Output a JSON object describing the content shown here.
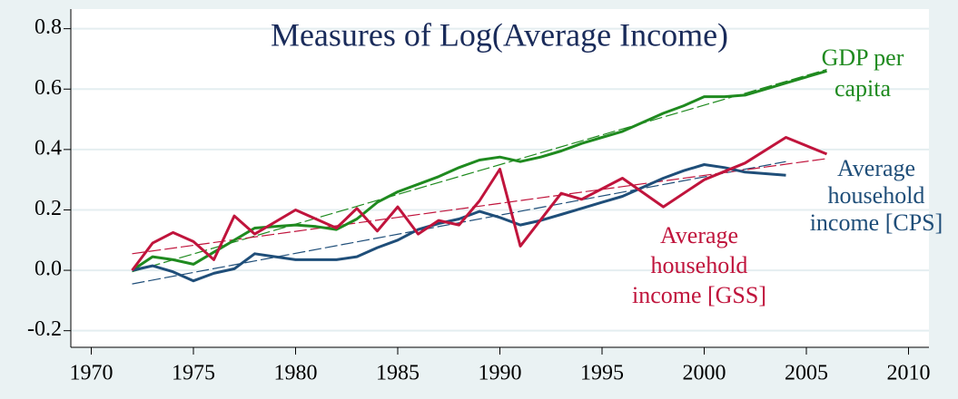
{
  "chart_data": {
    "type": "line",
    "title": "Measures of Log(Average Income)",
    "xlim": [
      1969,
      2011
    ],
    "xticks": [
      1970,
      1975,
      1980,
      1985,
      1990,
      1995,
      2000,
      2005,
      2010
    ],
    "ylim": [
      -0.255,
      0.865
    ],
    "yticks": [
      0.8,
      0.6,
      0.4,
      {
        "value": 0,
        "label": "0.0"
      },
      0.2,
      -0.2
    ],
    "grid": true,
    "series": [
      {
        "label": [
          "GDP per",
          "capita"
        ],
        "color": "#1f8a1f",
        "x": [
          1972,
          1973,
          1974,
          1975,
          1976,
          1977,
          1978,
          1979,
          1980,
          1981,
          1982,
          1983,
          1984,
          1985,
          1986,
          1987,
          1988,
          1989,
          1990,
          1991,
          1992,
          1993,
          1994,
          1995,
          1996,
          1997,
          1998,
          1999,
          2000,
          2001,
          2002,
          2003,
          2004,
          2005,
          2006
        ],
        "values": [
          0,
          0.045,
          0.035,
          0.02,
          0.06,
          0.1,
          0.14,
          0.145,
          0.15,
          0.145,
          0.135,
          0.17,
          0.225,
          0.26,
          0.285,
          0.31,
          0.34,
          0.365,
          0.375,
          0.36,
          0.375,
          0.395,
          0.42,
          0.44,
          0.46,
          0.49,
          0.52,
          0.545,
          0.575,
          0.575,
          0.58,
          0.6,
          0.62,
          0.64,
          0.66
        ]
      },
      {
        "label": [
          "Average",
          "household",
          "income [CPS]"
        ],
        "color": "#1f4e79",
        "x": [
          1972,
          1973,
          1974,
          1975,
          1976,
          1977,
          1978,
          1979,
          1980,
          1981,
          1982,
          1983,
          1984,
          1985,
          1986,
          1987,
          1988,
          1989,
          1990,
          1991,
          1992,
          1993,
          1994,
          1995,
          1996,
          1997,
          1998,
          1999,
          2000,
          2001,
          2002,
          2003,
          2004
        ],
        "values": [
          0,
          0.015,
          -0.005,
          -0.035,
          -0.01,
          0.005,
          0.055,
          0.045,
          0.035,
          0.035,
          0.035,
          0.045,
          0.075,
          0.1,
          0.135,
          0.155,
          0.17,
          0.195,
          0.175,
          0.15,
          0.165,
          0.185,
          0.205,
          0.225,
          0.245,
          0.275,
          0.305,
          0.33,
          0.35,
          0.34,
          0.325,
          0.32,
          0.315
        ]
      },
      {
        "label": [
          "Average",
          "household",
          "income [GSS]"
        ],
        "color": "#c0143c",
        "x": [
          1972,
          1973,
          1974,
          1975,
          1976,
          1977,
          1978,
          1980,
          1982,
          1983,
          1984,
          1985,
          1986,
          1987,
          1988,
          1989,
          1990,
          1991,
          1993,
          1994,
          1996,
          1998,
          2000,
          2002,
          2004,
          2006
        ],
        "values": [
          0,
          0.09,
          0.125,
          0.095,
          0.035,
          0.18,
          0.12,
          0.2,
          0.14,
          0.205,
          0.13,
          0.21,
          0.12,
          0.165,
          0.15,
          0.23,
          0.335,
          0.08,
          0.255,
          0.235,
          0.305,
          0.21,
          0.3,
          0.355,
          0.44,
          0.385
        ]
      }
    ],
    "trends": [
      {
        "color": "#1f8a1f",
        "x": [
          1972,
          2006
        ],
        "values": [
          -0.005,
          0.665
        ]
      },
      {
        "color": "#1f4e79",
        "x": [
          1972,
          2004
        ],
        "values": [
          -0.045,
          0.36
        ]
      },
      {
        "color": "#c0143c",
        "x": [
          1972,
          2006
        ],
        "values": [
          0.055,
          0.37
        ]
      }
    ]
  }
}
